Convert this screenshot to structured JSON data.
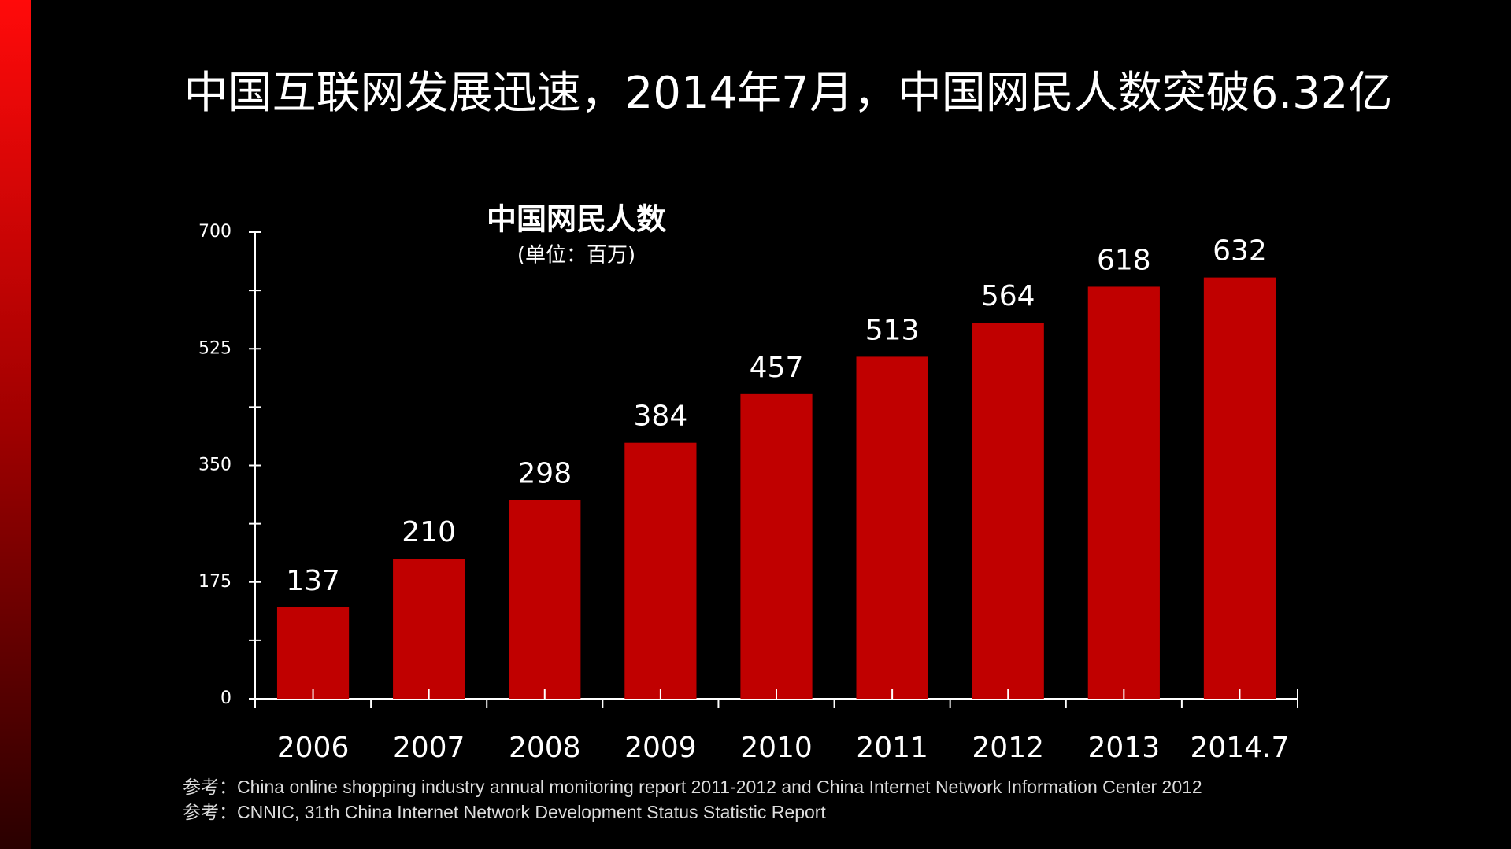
{
  "chart_data": {
    "type": "bar",
    "title": "中国互联网发展迅速，2014年7月，中国网民人数突破6.32亿",
    "subtitle": "中国网民人数",
    "unit_label": "(单位：百万)",
    "categories": [
      "2006",
      "2007",
      "2008",
      "2009",
      "2010",
      "2011",
      "2012",
      "2013",
      "2014.7"
    ],
    "values": [
      137,
      210,
      298,
      384,
      457,
      513,
      564,
      618,
      632
    ],
    "color": "#c00000",
    "ylim": [
      0,
      700
    ],
    "yticks": [
      0,
      175,
      350,
      525,
      700
    ],
    "notes": [
      "参考：China online shopping industry annual monitoring report 2011-2012  and China Internet Network Information  Center 2012",
      "参考：CNNIC, 31th China Internet  Network Development  Status Statistic Report"
    ]
  }
}
